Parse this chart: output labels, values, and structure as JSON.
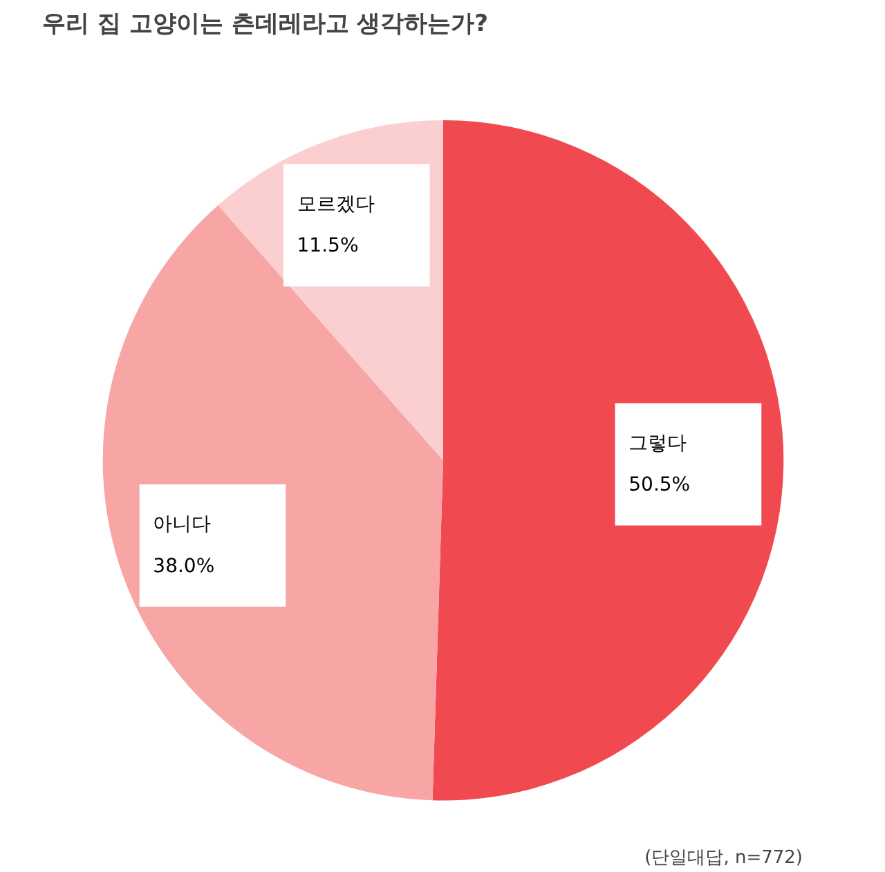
{
  "chart_data": {
    "type": "pie",
    "title": "우리 집 고양이는 츤데레라고 생각하는가?",
    "categories": [
      "그렇다",
      "아니다",
      "모르겠다"
    ],
    "values": [
      50.5,
      38.0,
      11.5
    ],
    "colors": [
      "#f04a50",
      "#f7a5a5",
      "#fbcfd0"
    ],
    "value_labels": [
      "50.5%",
      "38.0%",
      "11.5%"
    ],
    "legend": false,
    "annotations": [
      "(단일대답, n=772)"
    ]
  }
}
